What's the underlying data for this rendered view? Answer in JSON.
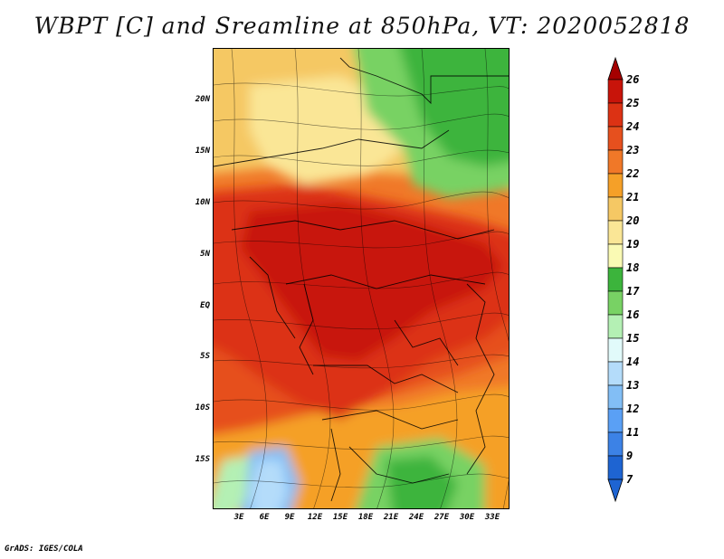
{
  "title": "WBPT [C] and Sreamline at 850hPa, VT: 2020052818",
  "footer": "GrADS: IGES/COLA",
  "lat_labels": [
    "20N",
    "15N",
    "10N",
    "5N",
    "EQ",
    "5S",
    "10S",
    "15S"
  ],
  "lon_labels": [
    "3E",
    "6E",
    "9E",
    "12E",
    "15E",
    "18E",
    "21E",
    "24E",
    "27E",
    "30E",
    "33E"
  ],
  "colorbar": {
    "levels": [
      "26",
      "25",
      "24",
      "23",
      "22",
      "21",
      "20",
      "19",
      "18",
      "17",
      "16",
      "15",
      "14",
      "13",
      "12",
      "11",
      "9",
      "7"
    ],
    "colors": [
      "#a50000",
      "#c8140a",
      "#dc3214",
      "#e6501e",
      "#f07828",
      "#f5a028",
      "#f5c864",
      "#fae696",
      "#fafab4",
      "#3cb43c",
      "#78d264",
      "#b4f0b4",
      "#e1fafa",
      "#b4dcfa",
      "#82bef5",
      "#5aa0f5",
      "#3c82e6",
      "#1e64d2"
    ]
  },
  "map_colors": {
    "red_dark": "#c8140a",
    "red": "#dc3214",
    "orange_red": "#e6501e",
    "orange": "#f07828",
    "amber": "#f5a028",
    "light_orange": "#f5c864",
    "pale_yellow": "#fae696",
    "green": "#3cb43c",
    "light_green": "#78d264",
    "pale_green": "#b4f0b4",
    "light_blue": "#b4dcfa",
    "blue": "#82bef5"
  }
}
